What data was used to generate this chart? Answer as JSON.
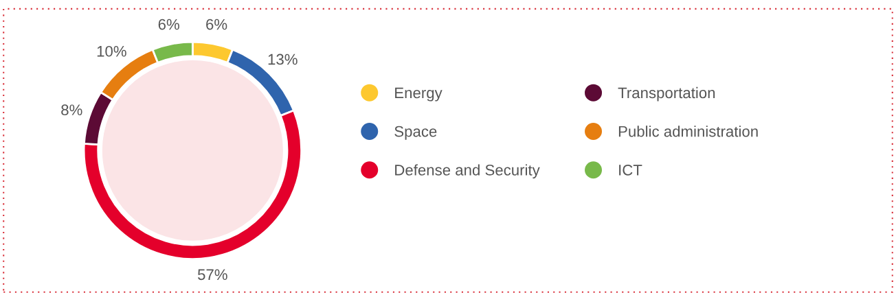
{
  "chart_data": {
    "type": "donut",
    "categories": [
      "Energy",
      "Space",
      "Defense and Security",
      "Transportation",
      "Public administration",
      "ICT"
    ],
    "values": [
      6,
      13,
      57,
      8,
      10,
      6
    ],
    "colors": [
      "#fdc82f",
      "#2f64ad",
      "#e4002b",
      "#5c0a35",
      "#e67e10",
      "#78b94a"
    ],
    "value_labels": [
      "6%",
      "13%",
      "57%",
      "8%",
      "10%",
      "6%"
    ],
    "legend": "right"
  }
}
